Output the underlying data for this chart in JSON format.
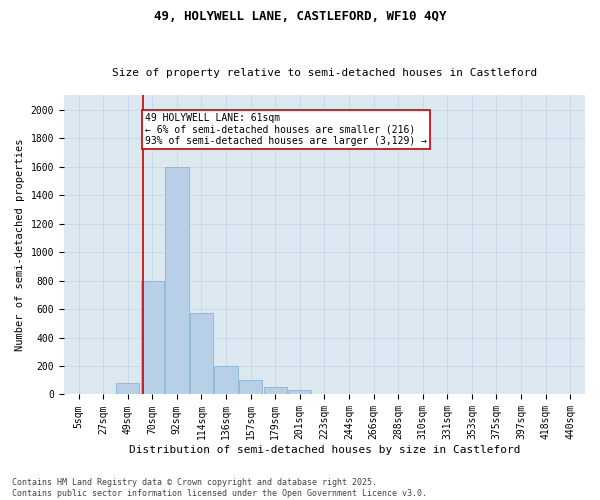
{
  "title1": "49, HOLYWELL LANE, CASTLEFORD, WF10 4QY",
  "title2": "Size of property relative to semi-detached houses in Castleford",
  "xlabel": "Distribution of semi-detached houses by size in Castleford",
  "ylabel": "Number of semi-detached properties",
  "categories": [
    "5sqm",
    "27sqm",
    "49sqm",
    "70sqm",
    "92sqm",
    "114sqm",
    "136sqm",
    "157sqm",
    "179sqm",
    "201sqm",
    "223sqm",
    "244sqm",
    "266sqm",
    "288sqm",
    "310sqm",
    "331sqm",
    "353sqm",
    "375sqm",
    "397sqm",
    "418sqm",
    "440sqm"
  ],
  "values": [
    0,
    0,
    80,
    800,
    1600,
    575,
    200,
    100,
    50,
    30,
    0,
    0,
    0,
    0,
    0,
    0,
    0,
    0,
    0,
    0,
    0
  ],
  "bar_color": "#b8cfe8",
  "bar_edge_color": "#7bafd4",
  "vline_x_index": 2.62,
  "annotation_text": "49 HOLYWELL LANE: 61sqm\n← 6% of semi-detached houses are smaller (216)\n93% of semi-detached houses are larger (3,129) →",
  "annotation_box_color": "#ffffff",
  "annotation_box_edge": "#cc0000",
  "vline_color": "#cc0000",
  "grid_color": "#c8d8e8",
  "background_color": "#dce8f0",
  "ylim": [
    0,
    2100
  ],
  "yticks": [
    0,
    200,
    400,
    600,
    800,
    1000,
    1200,
    1400,
    1600,
    1800,
    2000
  ],
  "footer": "Contains HM Land Registry data © Crown copyright and database right 2025.\nContains public sector information licensed under the Open Government Licence v3.0.",
  "title1_fontsize": 9,
  "title2_fontsize": 8,
  "xlabel_fontsize": 8,
  "ylabel_fontsize": 7.5,
  "tick_fontsize": 7,
  "annotation_fontsize": 7,
  "footer_fontsize": 6
}
